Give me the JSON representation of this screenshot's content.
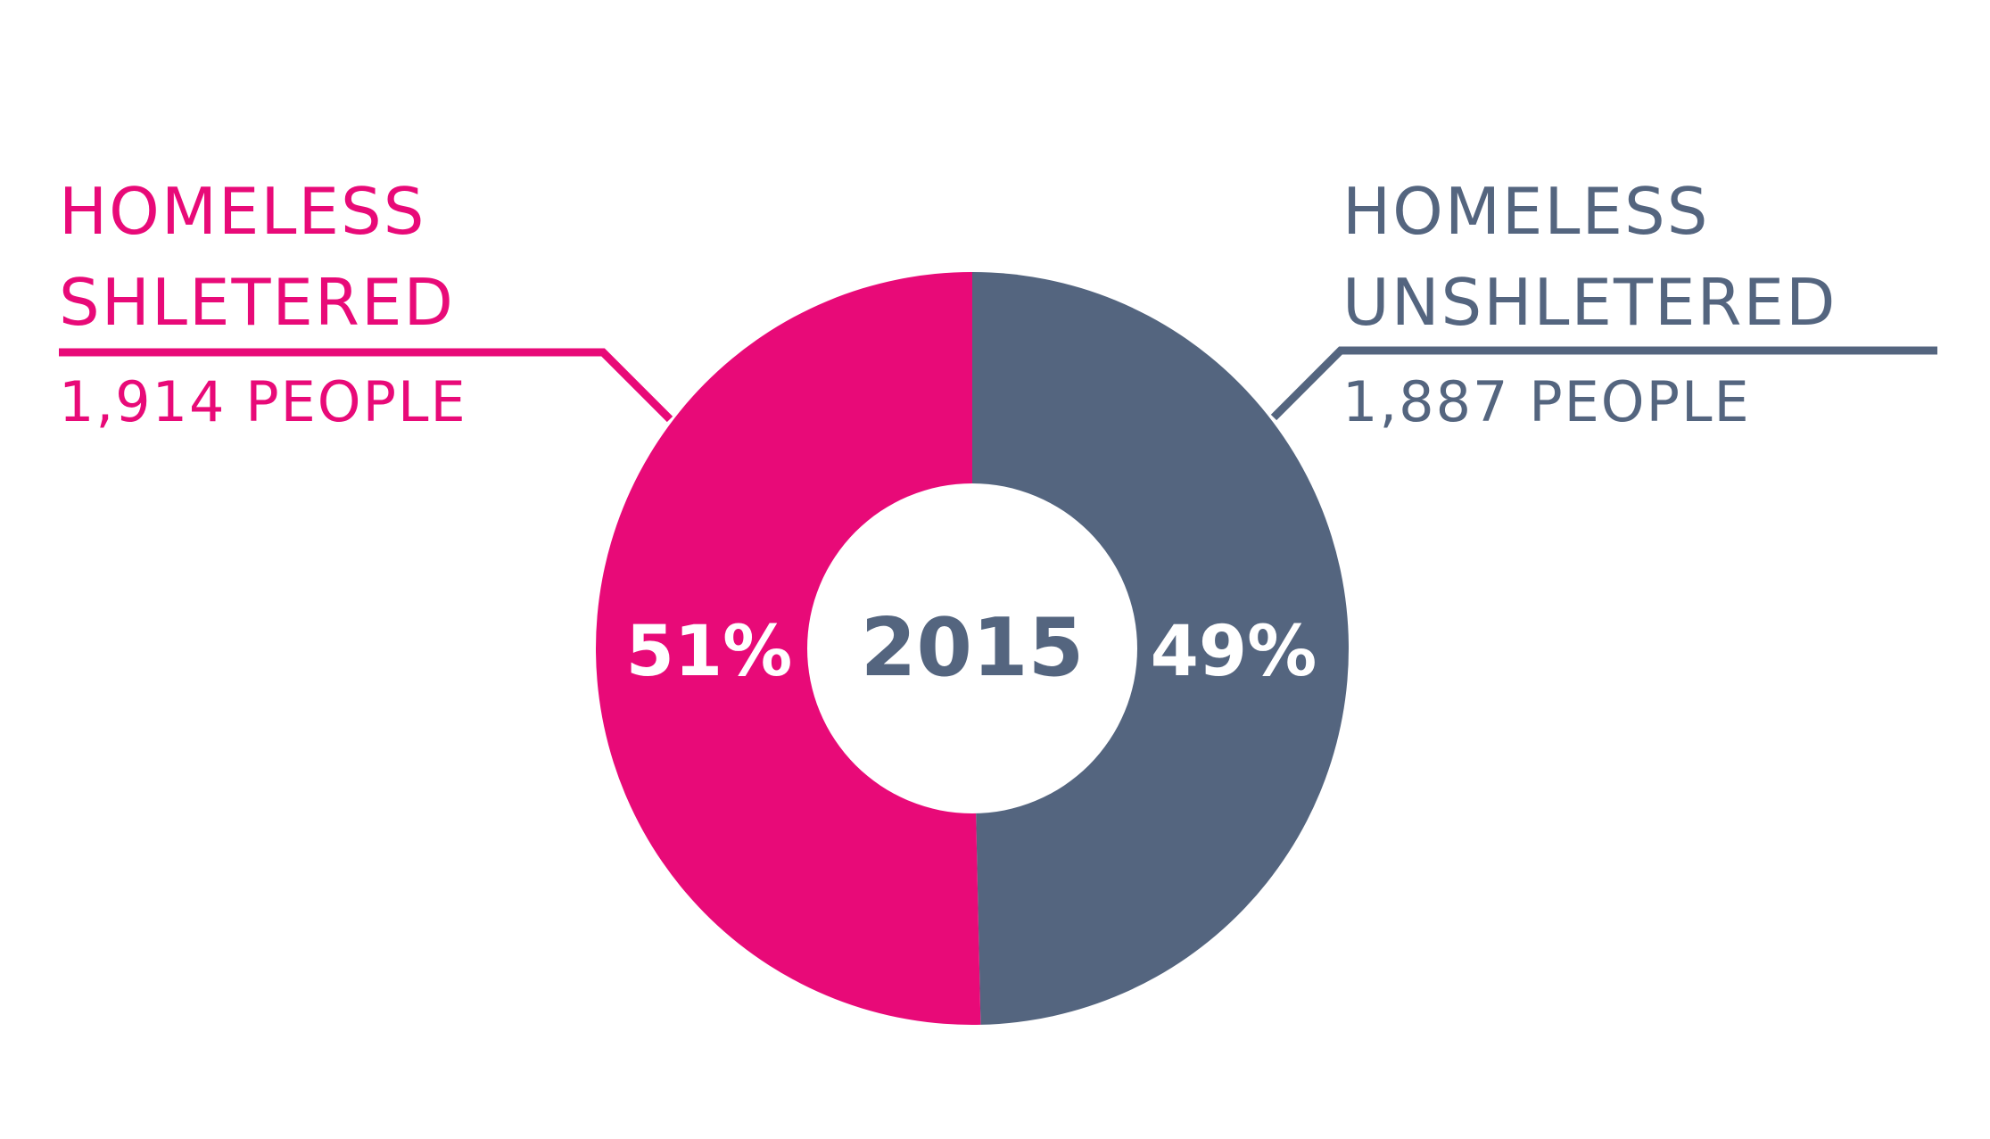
{
  "chart_data": {
    "type": "pie",
    "center_label": "2015",
    "series": [
      {
        "name_line1": "HOMELESS",
        "name_line2": "SHLETERED",
        "people": "1,914 PEOPLE",
        "percent_label": "51%",
        "value": 1914,
        "percent": 51,
        "color": "#e80a78"
      },
      {
        "name_line1": "HOMELESS",
        "name_line2": "UNSHLETERED",
        "people": "1,887 PEOPLE",
        "percent_label": "49%",
        "value": 1887,
        "percent": 49,
        "color": "#54657f"
      }
    ]
  }
}
